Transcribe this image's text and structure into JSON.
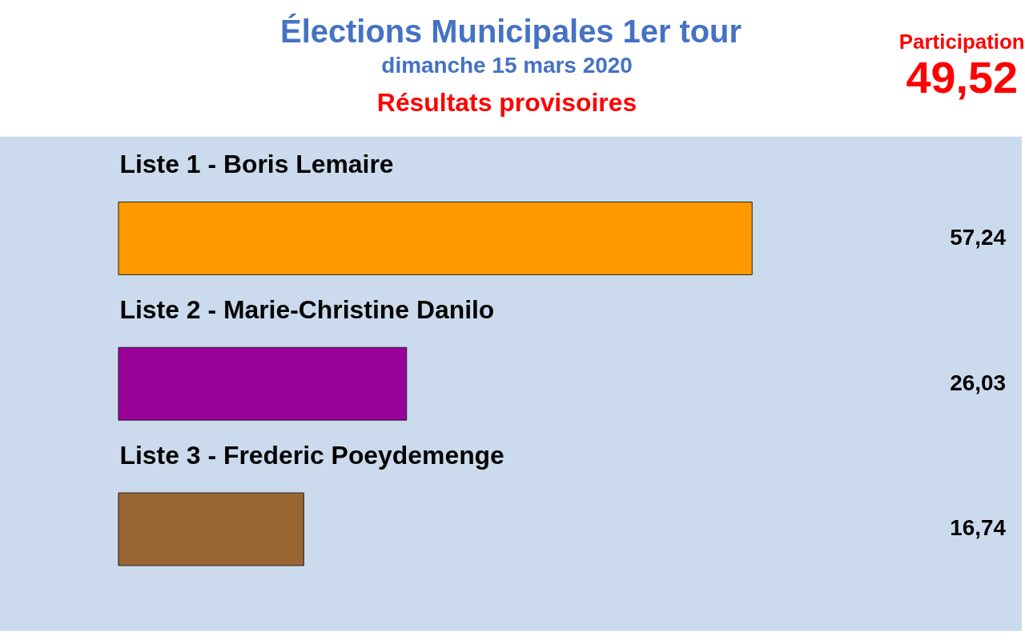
{
  "chart_data": {
    "type": "bar",
    "orientation": "horizontal",
    "title": "Élections Municipales 1er tour",
    "subtitle": "dimanche 15 mars 2020",
    "annotations": [
      "Résultats provisoires",
      "Participation",
      "49,52"
    ],
    "categories": [
      "Liste 1 - Boris Lemaire",
      "Liste 2 - Marie-Christine Danilo",
      "Liste 3 - Frederic Poeydemenge"
    ],
    "values": [
      57.24,
      26.03,
      16.74
    ],
    "colors": [
      "#ff9900",
      "#990099",
      "#996633"
    ],
    "value_labels": [
      "57,24",
      "26,03",
      "16,74"
    ]
  }
}
